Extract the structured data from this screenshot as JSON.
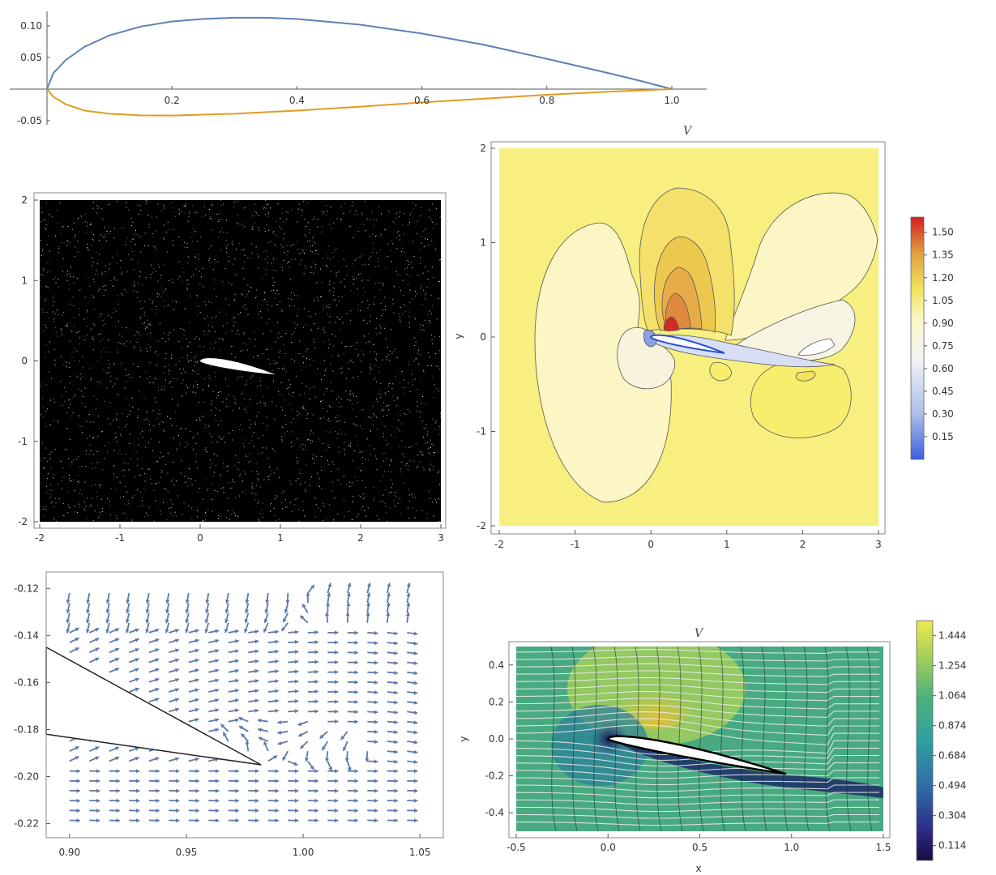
{
  "chart_data": [
    {
      "id": "profile",
      "type": "line",
      "title": "",
      "xlabel": "",
      "ylabel": "",
      "xlim": [
        0,
        1.05
      ],
      "ylim": [
        -0.05,
        0.115
      ],
      "xticks": [
        0.2,
        0.4,
        0.6,
        0.8,
        1.0
      ],
      "xtick_labels": [
        "0.2",
        "0.4",
        "0.6",
        "0.8",
        "1.0"
      ],
      "yticks": [
        -0.05,
        0.05,
        0.1
      ],
      "ytick_labels": [
        "-0.05",
        "0.05",
        "0.10"
      ],
      "series": [
        {
          "color": "#5e81b5",
          "x": [
            0.0,
            0.01,
            0.03,
            0.06,
            0.1,
            0.15,
            0.2,
            0.25,
            0.3,
            0.35,
            0.4,
            0.5,
            0.6,
            0.7,
            0.8,
            0.9,
            0.95,
            1.0
          ],
          "y": [
            0.0,
            0.025,
            0.046,
            0.067,
            0.085,
            0.099,
            0.107,
            0.111,
            0.113,
            0.113,
            0.111,
            0.102,
            0.088,
            0.07,
            0.048,
            0.025,
            0.013,
            0.0
          ]
        },
        {
          "color": "#e19c24",
          "x": [
            0.0,
            0.01,
            0.03,
            0.06,
            0.1,
            0.15,
            0.2,
            0.3,
            0.4,
            0.5,
            0.6,
            0.7,
            0.8,
            0.9,
            1.0
          ],
          "y": [
            0.0,
            -0.012,
            -0.024,
            -0.034,
            -0.039,
            -0.0415,
            -0.0418,
            -0.039,
            -0.034,
            -0.028,
            -0.021,
            -0.015,
            -0.009,
            -0.004,
            0.0
          ]
        }
      ]
    },
    {
      "id": "mesh",
      "type": "scatter",
      "title": "",
      "xlim": [
        -2,
        3
      ],
      "ylim": [
        -2,
        2
      ],
      "xticks": [
        -2,
        -1,
        0,
        1,
        2,
        3
      ],
      "xtick_labels": [
        "-2",
        "-1",
        "0",
        "1",
        "2",
        "3"
      ],
      "yticks": [
        -2,
        -1,
        0,
        1,
        2
      ],
      "ytick_labels": [
        "-2",
        "-1",
        "0",
        "1",
        "2"
      ],
      "background": "#000000",
      "point_color": "#ffffff"
    },
    {
      "id": "velocity-contour",
      "type": "heatmap",
      "title": "V",
      "ylabel": "y",
      "xlim": [
        -2,
        3
      ],
      "ylim": [
        -2,
        2
      ],
      "xticks": [
        -2,
        -1,
        0,
        1,
        2,
        3
      ],
      "xtick_labels": [
        "-2",
        "-1",
        "0",
        "1",
        "2",
        "3"
      ],
      "yticks": [
        -2,
        -1,
        0,
        1,
        2
      ],
      "ytick_labels": [
        "-2",
        "-1",
        "0",
        "1",
        "2"
      ],
      "colorbar_range": [
        0,
        1.6
      ],
      "colorbar_ticks": [
        1.5,
        1.35,
        1.2,
        1.05,
        0.9,
        0.75,
        0.6,
        0.45,
        0.3,
        0.15
      ],
      "colorbar_labels": [
        "1.50",
        "1.35",
        "1.20",
        "1.05",
        "0.90",
        "0.75",
        "0.60",
        "0.45",
        "0.30",
        "0.15"
      ]
    },
    {
      "id": "trailing-edge-streamlines",
      "type": "scatter",
      "title": "",
      "xlim": [
        0.89,
        1.06
      ],
      "ylim": [
        -0.226,
        -0.113
      ],
      "xticks": [
        0.9,
        0.95,
        1.0,
        1.05
      ],
      "xtick_labels": [
        "0.90",
        "0.95",
        "1.00",
        "1.05"
      ],
      "yticks": [
        -0.12,
        -0.14,
        -0.16,
        -0.18,
        -0.2,
        -0.22
      ],
      "ytick_labels": [
        "-0.12",
        "-0.14",
        "-0.16",
        "-0.18",
        "-0.20",
        "-0.22"
      ],
      "arrow_color": "#5b7aa8"
    },
    {
      "id": "velocity-density",
      "type": "heatmap",
      "title": "V",
      "xlabel": "x",
      "ylabel": "y",
      "xlim": [
        -0.5,
        1.5
      ],
      "ylim": [
        -0.5,
        0.5
      ],
      "xticks": [
        -0.5,
        0.0,
        0.5,
        1.0,
        1.5
      ],
      "xtick_labels": [
        "-0.5",
        "0.0",
        "0.5",
        "1.0",
        "1.5"
      ],
      "yticks": [
        0.4,
        0.2,
        0.0,
        -0.2,
        -0.4
      ],
      "ytick_labels": [
        "0.4",
        "0.2",
        "0.0",
        "-0.2",
        "-0.4"
      ],
      "colorbar_range": [
        0.02,
        1.54
      ],
      "colorbar_ticks": [
        1.444,
        1.254,
        1.064,
        0.874,
        0.684,
        0.494,
        0.304,
        0.114
      ],
      "colorbar_labels": [
        "1.444",
        "1.254",
        "1.064",
        "0.874",
        "0.684",
        "0.494",
        "0.304",
        "0.114"
      ]
    }
  ]
}
